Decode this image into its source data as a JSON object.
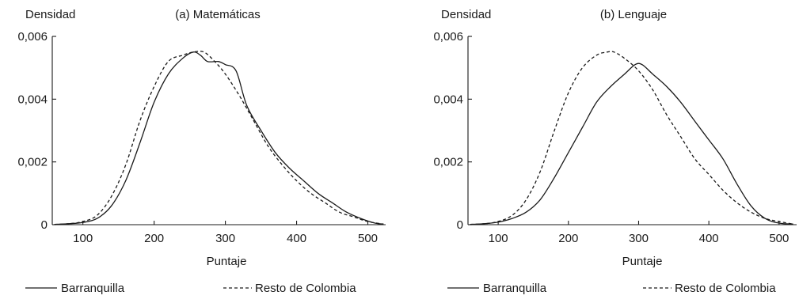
{
  "chart_data": [
    {
      "type": "line",
      "title": "(a) Matemáticas",
      "ylabel": "Densidad",
      "xlabel": "Puntaje",
      "xlim": [
        57,
        525
      ],
      "ylim": [
        0,
        0.006
      ],
      "xticks": [
        100,
        200,
        300,
        400,
        500
      ],
      "xtick_labels": [
        "100",
        "200",
        "300",
        "400",
        "500"
      ],
      "yticks": [
        0,
        0.002,
        0.004,
        0.006
      ],
      "ytick_labels": [
        "0",
        "0,002",
        "0,004",
        "0,006"
      ],
      "legend_position": "bottom",
      "series": [
        {
          "name": "Barranquilla",
          "style": "solid",
          "x": [
            60,
            80,
            100,
            120,
            140,
            160,
            180,
            200,
            220,
            240,
            255,
            265,
            275,
            290,
            300,
            315,
            330,
            350,
            370,
            390,
            410,
            430,
            450,
            470,
            490,
            510,
            522
          ],
          "y": [
            1e-05,
            3e-05,
            7e-05,
            0.0002,
            0.0006,
            0.0014,
            0.0026,
            0.0039,
            0.0048,
            0.0053,
            0.0055,
            0.0054,
            0.0052,
            0.0052,
            0.0051,
            0.0049,
            0.0038,
            0.003,
            0.0023,
            0.0018,
            0.0014,
            0.001,
            0.0007,
            0.0004,
            0.0002,
            5e-05,
            2e-05
          ]
        },
        {
          "name": "Resto de Colombia",
          "style": "dashed",
          "x": [
            60,
            80,
            100,
            120,
            140,
            160,
            180,
            200,
            220,
            240,
            255,
            270,
            285,
            300,
            320,
            340,
            360,
            380,
            400,
            420,
            440,
            460,
            480,
            500,
            522
          ],
          "y": [
            1e-05,
            3e-05,
            0.0001,
            0.0003,
            0.0009,
            0.0019,
            0.0033,
            0.0044,
            0.0052,
            0.0054,
            0.0055,
            0.0055,
            0.0052,
            0.0048,
            0.0041,
            0.0033,
            0.0025,
            0.0019,
            0.0014,
            0.001,
            0.0007,
            0.0004,
            0.00025,
            0.0001,
            2e-05
          ]
        }
      ]
    },
    {
      "type": "line",
      "title": "(b) Lenguaje",
      "ylabel": "Densidad",
      "xlabel": "Puntaje",
      "xlim": [
        57,
        525
      ],
      "ylim": [
        0,
        0.006
      ],
      "xticks": [
        100,
        200,
        300,
        400,
        500
      ],
      "xtick_labels": [
        "100",
        "200",
        "300",
        "400",
        "500"
      ],
      "yticks": [
        0,
        0.002,
        0.004,
        0.006
      ],
      "ytick_labels": [
        "0",
        "0,002",
        "0,004",
        "0,006"
      ],
      "legend_position": "bottom",
      "series": [
        {
          "name": "Barranquilla",
          "style": "solid",
          "x": [
            60,
            80,
            100,
            120,
            140,
            160,
            180,
            200,
            220,
            240,
            260,
            280,
            295,
            305,
            320,
            340,
            360,
            380,
            400,
            420,
            440,
            460,
            480,
            500,
            520
          ],
          "y": [
            1e-05,
            3e-05,
            8e-05,
            0.0002,
            0.0004,
            0.0008,
            0.0015,
            0.0023,
            0.0031,
            0.0039,
            0.0044,
            0.0048,
            0.0051,
            0.0051,
            0.0048,
            0.0044,
            0.0039,
            0.0033,
            0.0027,
            0.0021,
            0.0013,
            0.0006,
            0.0002,
            5e-05,
            2e-05
          ]
        },
        {
          "name": "Resto de Colombia",
          "style": "dashed",
          "x": [
            60,
            80,
            100,
            120,
            140,
            160,
            180,
            200,
            220,
            240,
            255,
            265,
            280,
            300,
            320,
            340,
            360,
            380,
            400,
            420,
            440,
            460,
            480,
            500,
            520
          ],
          "y": [
            1e-05,
            3e-05,
            0.0001,
            0.0003,
            0.0008,
            0.0017,
            0.003,
            0.0042,
            0.005,
            0.0054,
            0.0055,
            0.0055,
            0.0053,
            0.0049,
            0.0043,
            0.0035,
            0.0028,
            0.0021,
            0.0016,
            0.0011,
            0.0007,
            0.0004,
            0.0002,
            0.0001,
            2e-05
          ]
        }
      ]
    }
  ]
}
